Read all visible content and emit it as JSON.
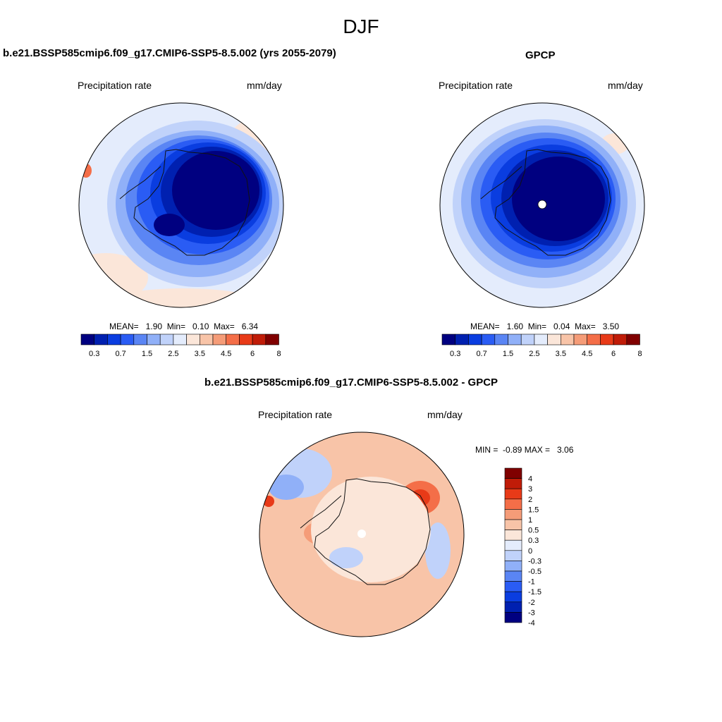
{
  "figure": {
    "title": "DJF"
  },
  "palette": {
    "abs_colors": [
      "#000080",
      "#0020b0",
      "#0a3de0",
      "#2a5cf4",
      "#5a85f4",
      "#90b0f8",
      "#c0d2fa",
      "#e4ecfc",
      "#fbe6d9",
      "#f8c4a8",
      "#f59c78",
      "#f46e48",
      "#e83a18",
      "#c01c08",
      "#800000"
    ],
    "diff_colors": [
      "#000080",
      "#0020b0",
      "#0a3de0",
      "#2a5cf4",
      "#5a85f4",
      "#90b0f8",
      "#c0d2fa",
      "#e4ecfc",
      "#fbe6d9",
      "#f8c4a8",
      "#f59c78",
      "#f46e48",
      "#e83a18",
      "#c01c08",
      "#800000"
    ]
  },
  "panels": {
    "model": {
      "title": "b.e21.BSSP585cmip6.f09_g17.CMIP6-SSP5-8.5.002 (yrs 2055-2079)",
      "variable": "Precipitation rate",
      "units": "mm/day",
      "stats": "MEAN=   1.90  Min=   0.10  Max=   6.34"
    },
    "obs": {
      "title": "GPCP",
      "variable": "Precipitation rate",
      "units": "mm/day",
      "stats": "MEAN=   1.60  Min=   0.04  Max=   3.50"
    },
    "diff": {
      "title": "b.e21.BSSP585cmip6.f09_g17.CMIP6-SSP5-8.5.002 - GPCP",
      "variable": "Precipitation rate",
      "units": "mm/day",
      "stats": "MIN =  -0.89 MAX =   3.06"
    }
  },
  "colorbar_abs": {
    "labels": [
      "0.3",
      "0.7",
      "1.5",
      "2.5",
      "3.5",
      "4.5",
      "6",
      "8"
    ]
  },
  "colorbar_diff": {
    "labels": [
      "4",
      "3",
      "2",
      "1.5",
      "1",
      "0.5",
      "0.3",
      "0",
      "-0.3",
      "-0.5",
      "-1",
      "-1.5",
      "-2",
      "-3",
      "-4"
    ]
  }
}
